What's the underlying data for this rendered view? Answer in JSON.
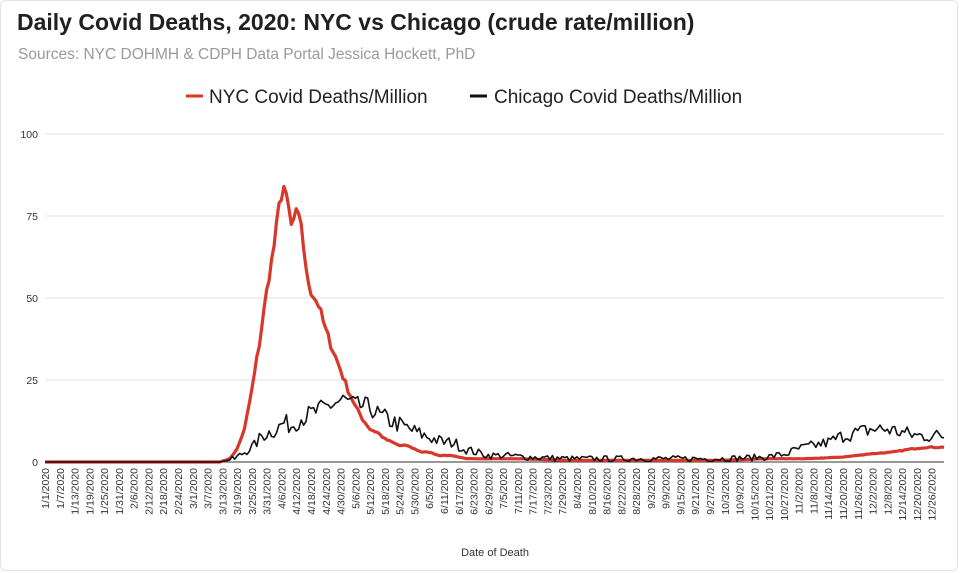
{
  "header": {
    "title": "Daily Covid Deaths, 2020: NYC vs Chicago (crude rate/million)",
    "subtitle": "Sources: NYC DOHMH & CDPH Data Portal Jessica Hockett, PhD"
  },
  "chart_data": {
    "type": "line",
    "title": "Daily Covid Deaths, 2020: NYC vs Chicago (crude rate/million)",
    "subtitle": "Sources: NYC DOHMH & CDPH Data Portal Jessica Hockett, PhD",
    "xlabel": "Date of Death",
    "ylabel": "",
    "ylim": [
      0,
      100
    ],
    "yticks": [
      0,
      25,
      50,
      75,
      100
    ],
    "grid": true,
    "legend_position": "top",
    "x_tick_labels": [
      "1/1/2020",
      "1/7/2020",
      "1/13/2020",
      "1/19/2020",
      "1/25/2020",
      "1/31/2020",
      "2/6/2020",
      "2/12/2020",
      "2/18/2020",
      "2/24/2020",
      "3/1/2020",
      "3/7/2020",
      "3/13/2020",
      "3/19/2020",
      "3/25/2020",
      "3/31/2020",
      "4/6/2020",
      "4/12/2020",
      "4/18/2020",
      "4/24/2020",
      "4/30/2020",
      "5/6/2020",
      "5/12/2020",
      "5/18/2020",
      "5/24/2020",
      "5/30/2020",
      "6/5/2020",
      "6/11/2020",
      "6/17/2020",
      "6/23/2020",
      "6/29/2020",
      "7/5/2020",
      "7/11/2020",
      "7/17/2020",
      "7/23/2020",
      "7/29/2020",
      "8/4/2020",
      "8/10/2020",
      "8/16/2020",
      "8/22/2020",
      "8/28/2020",
      "9/3/2020",
      "9/9/2020",
      "9/15/2020",
      "9/21/2020",
      "9/27/2020",
      "10/3/2020",
      "10/9/2020",
      "10/15/2020",
      "10/21/2020",
      "10/27/2020",
      "11/2/2020",
      "11/8/2020",
      "11/14/2020",
      "11/20/2020",
      "11/26/2020",
      "12/2/2020",
      "12/8/2020",
      "12/14/2020",
      "12/20/2020",
      "12/26/2020"
    ],
    "series": [
      {
        "name": "NYC Covid Deaths/Million",
        "color": "#d9372b",
        "points": [
          [
            "1/1/2020",
            0
          ],
          [
            "3/12/2020",
            0
          ],
          [
            "3/16/2020",
            1
          ],
          [
            "3/19/2020",
            4
          ],
          [
            "3/22/2020",
            10
          ],
          [
            "3/25/2020",
            22
          ],
          [
            "3/28/2020",
            36
          ],
          [
            "3/31/2020",
            52
          ],
          [
            "4/3/2020",
            66
          ],
          [
            "4/5/2020",
            78
          ],
          [
            "4/7/2020",
            84
          ],
          [
            "4/9/2020",
            77
          ],
          [
            "4/10/2020",
            72
          ],
          [
            "4/12/2020",
            76
          ],
          [
            "4/14/2020",
            73
          ],
          [
            "4/16/2020",
            58
          ],
          [
            "4/18/2020",
            52
          ],
          [
            "4/21/2020",
            48
          ],
          [
            "4/24/2020",
            40
          ],
          [
            "4/27/2020",
            34
          ],
          [
            "4/30/2020",
            28
          ],
          [
            "5/3/2020",
            22
          ],
          [
            "5/6/2020",
            17
          ],
          [
            "5/9/2020",
            13
          ],
          [
            "5/12/2020",
            10
          ],
          [
            "5/15/2020",
            9
          ],
          [
            "5/18/2020",
            7
          ],
          [
            "5/21/2020",
            6
          ],
          [
            "5/24/2020",
            5
          ],
          [
            "5/27/2020",
            5
          ],
          [
            "5/30/2020",
            4
          ],
          [
            "6/2/2020",
            3
          ],
          [
            "6/5/2020",
            3
          ],
          [
            "6/9/2020",
            2
          ],
          [
            "6/14/2020",
            2
          ],
          [
            "6/20/2020",
            1
          ],
          [
            "6/29/2020",
            1
          ],
          [
            "7/11/2020",
            1
          ],
          [
            "8/1/2020",
            0.5
          ],
          [
            "9/1/2020",
            0.5
          ],
          [
            "10/1/2020",
            0.5
          ],
          [
            "10/20/2020",
            1
          ],
          [
            "11/5/2020",
            1
          ],
          [
            "11/20/2020",
            1.5
          ],
          [
            "12/1/2020",
            2.5
          ],
          [
            "12/10/2020",
            3
          ],
          [
            "12/18/2020",
            4
          ],
          [
            "12/24/2020",
            4.5
          ],
          [
            "12/31/2020",
            4.5
          ]
        ]
      },
      {
        "name": "Chicago Covid Deaths/Million",
        "color": "#111111",
        "points": [
          [
            "1/1/2020",
            0
          ],
          [
            "3/12/2020",
            0
          ],
          [
            "3/18/2020",
            1
          ],
          [
            "3/22/2020",
            3
          ],
          [
            "3/26/2020",
            5
          ],
          [
            "3/29/2020",
            8
          ],
          [
            "4/1/2020",
            9
          ],
          [
            "4/4/2020",
            10
          ],
          [
            "4/7/2020",
            12
          ],
          [
            "4/10/2020",
            11
          ],
          [
            "4/13/2020",
            13
          ],
          [
            "4/16/2020",
            14
          ],
          [
            "4/19/2020",
            15
          ],
          [
            "4/22/2020",
            16
          ],
          [
            "4/25/2020",
            17
          ],
          [
            "4/28/2020",
            18
          ],
          [
            "5/1/2020",
            19
          ],
          [
            "5/4/2020",
            18
          ],
          [
            "5/7/2020",
            17
          ],
          [
            "5/10/2020",
            17
          ],
          [
            "5/13/2020",
            16
          ],
          [
            "5/16/2020",
            14
          ],
          [
            "5/19/2020",
            13
          ],
          [
            "5/22/2020",
            12
          ],
          [
            "5/25/2020",
            11
          ],
          [
            "5/28/2020",
            10
          ],
          [
            "5/31/2020",
            9
          ],
          [
            "6/3/2020",
            8
          ],
          [
            "6/7/2020",
            7
          ],
          [
            "6/11/2020",
            6
          ],
          [
            "6/15/2020",
            6
          ],
          [
            "6/19/2020",
            4
          ],
          [
            "6/24/2020",
            3
          ],
          [
            "6/29/2020",
            2
          ],
          [
            "7/5/2020",
            2
          ],
          [
            "7/15/2020",
            1.5
          ],
          [
            "8/1/2020",
            1
          ],
          [
            "9/1/2020",
            1
          ],
          [
            "10/1/2020",
            1
          ],
          [
            "10/20/2020",
            1.5
          ],
          [
            "10/28/2020",
            2.5
          ],
          [
            "11/2/2020",
            4
          ],
          [
            "11/8/2020",
            5
          ],
          [
            "11/14/2020",
            6
          ],
          [
            "11/20/2020",
            8
          ],
          [
            "11/26/2020",
            9
          ],
          [
            "12/2/2020",
            10
          ],
          [
            "12/8/2020",
            10
          ],
          [
            "12/14/2020",
            9
          ],
          [
            "12/20/2020",
            8
          ],
          [
            "12/26/2020",
            8
          ],
          [
            "12/31/2020",
            8
          ]
        ]
      }
    ]
  }
}
